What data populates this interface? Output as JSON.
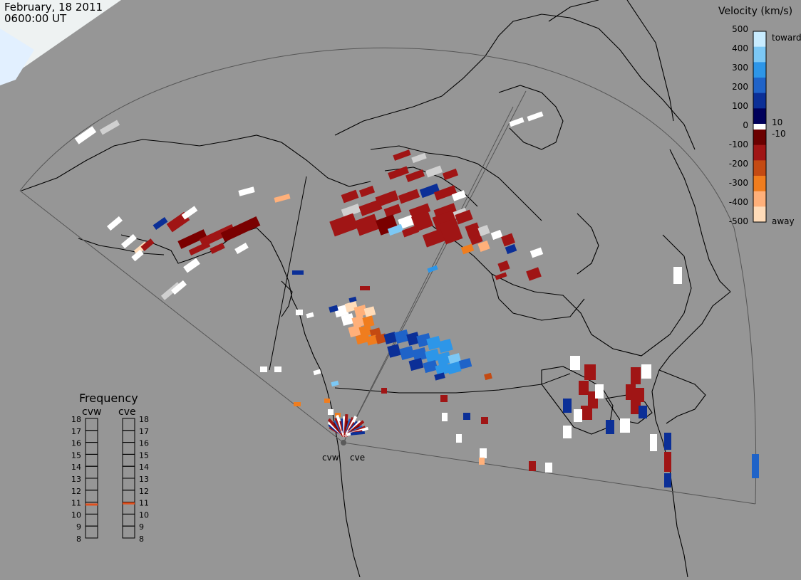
{
  "header": {
    "date": "February, 18 2011",
    "time": "0600:00 UT"
  },
  "velocity_scale": {
    "title": "Velocity (km/s)",
    "ticks": [
      "500",
      "400",
      "300",
      "200",
      "100",
      "10",
      "0",
      "-10",
      "-100",
      "-200",
      "-300",
      "-400",
      "-500"
    ],
    "toward_label": "toward",
    "away_label": "away",
    "colors": [
      "#c8ecff",
      "#7cc8f5",
      "#2d96e8",
      "#1f63c8",
      "#0b2f97",
      "#00005a",
      "#6b0000",
      "#a01515",
      "#c44a12",
      "#f07d1e",
      "#ffb07a",
      "#ffdcb9"
    ]
  },
  "frequency": {
    "title": "Frequency",
    "radars": [
      "cvw",
      "cve"
    ],
    "levels": [
      "18",
      "17",
      "16",
      "15",
      "14",
      "13",
      "12",
      "11",
      "10",
      "9",
      "8"
    ],
    "cvw_mhz": 10.8,
    "cve_mhz": 10.9,
    "marker_color": "#e0501e"
  },
  "map": {
    "site_labels": [
      "cvw",
      "cve"
    ],
    "background_color": "#969696",
    "terminator_color": "#eef2f2"
  }
}
